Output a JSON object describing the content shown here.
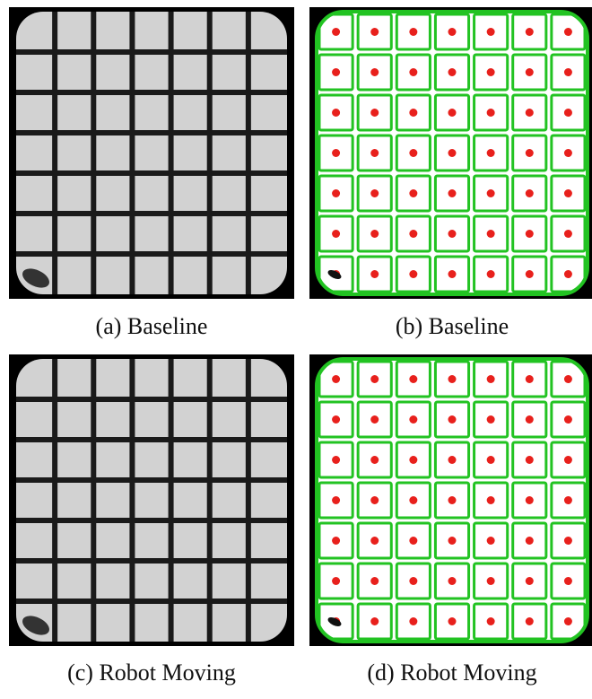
{
  "panels": [
    {
      "caption": "(a) Baseline"
    },
    {
      "caption": "(b) Baseline"
    },
    {
      "caption": "(c) Robot Moving"
    },
    {
      "caption": "(d) Robot Moving"
    }
  ]
}
